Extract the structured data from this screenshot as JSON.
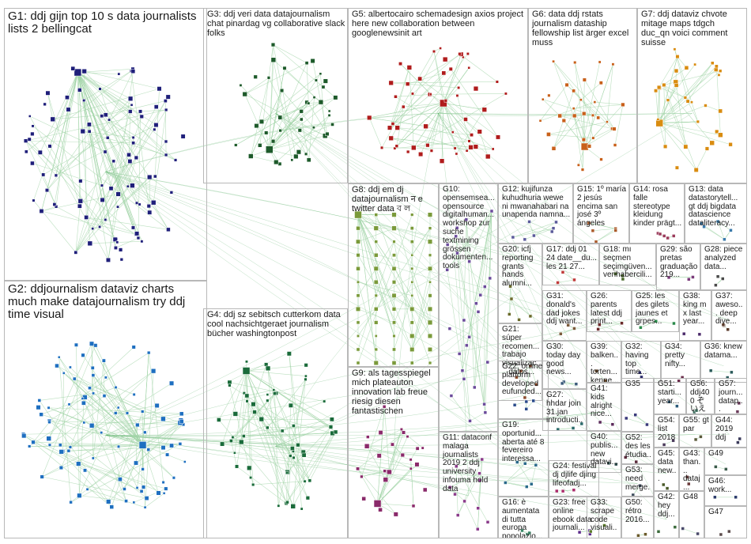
{
  "graph": {
    "colors": {
      "border": "#b8b8b8",
      "edge": "#3aa04a",
      "edge_faint": "#9fd3a5",
      "label": "#1a1a1a"
    },
    "groups": [
      {
        "id": "G1",
        "label": "G1: ddj gijn top 10 s data journalists lists 2 bellingcat",
        "color": "#1f1f7a"
      },
      {
        "id": "G2",
        "label": "G2: ddjournalism dataviz charts much make datajournalism try ddj time visual",
        "color": "#1e6fc0"
      },
      {
        "id": "G3",
        "label": "G3: ddj veri data datajournalism chat pinardag vg collaborative slack folks",
        "color": "#1d5a2a"
      },
      {
        "id": "G4",
        "label": "G4: ddj sz sebitsch cutterkom data cool nachsichtgeraet journalism bücher washingtonpost",
        "color": "#1a6b3a"
      },
      {
        "id": "G5",
        "label": "G5: albertocairo schemadesign axios project here new collaboration between googlenewsinit art",
        "color": "#b01c1c"
      },
      {
        "id": "G6",
        "label": "G6: data ddj rstats journalism dataship fellowship list ärger excel muss",
        "color": "#c8601a"
      },
      {
        "id": "G7",
        "label": "G7: ddj dataviz chvote mitage maps tdgch duc_qn voici comment suisse",
        "color": "#d98c10"
      },
      {
        "id": "G8",
        "label": "G8: ddj em dj datajournalism न e twitter data ব ল",
        "color": "#7a9a3a"
      },
      {
        "id": "G9",
        "label": "G9: als tagesspiegel mich plateauton innovation lab freue riesig diesen fantastischen",
        "color": "#8a2a6a"
      },
      {
        "id": "G10",
        "label": "G10: opensemsea... opensource digitalhuman... workshop zur suche textmining grössen dokumenten... tools",
        "color": "#6a4a9a"
      },
      {
        "id": "G11",
        "label": "G11: dataconf malaga journalists 2019 2 ddj university infouma hold data",
        "color": "#8a3a8a"
      },
      {
        "id": "G12",
        "label": "G12: kujifunza kuhudhuria wewe ni mwanahabari na unapenda namna...",
        "color": "#5a5a9a"
      },
      {
        "id": "G13",
        "label": "G13: data datastorytell... gt ddj bigdata datascience dataliteracy...",
        "color": "#3a7aaa"
      },
      {
        "id": "G14",
        "label": "G14: rosa falle stereotype kleidung kinder prägt...",
        "color": "#9a3a5a"
      },
      {
        "id": "G15",
        "label": "G15: 1º maría 2 jesús encima san josé 3º ángeles",
        "color": "#aa5a2a"
      },
      {
        "id": "G16",
        "label": "G16: è aumentata di tutta europa popolazio...",
        "color": "#3a8a6a"
      },
      {
        "id": "G17",
        "label": "G17: ddj 01 24 date__du... les 21 27...",
        "color": "#c03a3a"
      },
      {
        "id": "G18",
        "label": "G18: mı seçmen seçimgüven... verihabercili...",
        "color": "#4a6a2a"
      },
      {
        "id": "G19",
        "label": "G19: oportunid... aberta até 8 fevereiro interessa...",
        "color": "#2a6a8a"
      },
      {
        "id": "G20",
        "label": "G20: icfj reporting grants hands alumni...",
        "color": "#6a6a2a"
      },
      {
        "id": "G21",
        "label": "G21: súper recomen... trabajo visualizac... datos...",
        "color": "#8a4a2a"
      },
      {
        "id": "G22",
        "label": "G22: online platform developed eufunded...",
        "color": "#2a4a8a"
      },
      {
        "id": "G23",
        "label": "G23: free online ebook data journali...",
        "color": "#5a2a8a"
      },
      {
        "id": "G24",
        "label": "G24: festival dj djlife djing lifeofadj...",
        "color": "#aa2a6a"
      },
      {
        "id": "G25",
        "label": "G25: les des gilets jaunes et grpes...",
        "color": "#2a8a4a"
      },
      {
        "id": "G26",
        "label": "G26: parents latest ddj print...",
        "color": "#6a2a2a"
      },
      {
        "id": "G27",
        "label": "G27: hhdar join 31.jan introducti...",
        "color": "#2a6a6a"
      },
      {
        "id": "G28",
        "label": "G28: piece analyzed data...",
        "color": "#4a4a4a"
      },
      {
        "id": "G29",
        "label": "G29: são pretas graduação 219...",
        "color": "#7a3a7a"
      },
      {
        "id": "G30",
        "label": "G30: today day good news...",
        "color": "#3a5a7a"
      },
      {
        "id": "G31",
        "label": "G31: donald's dad jokes ddj want...",
        "color": "#7a5a3a"
      },
      {
        "id": "G32",
        "label": "G32: having top time...",
        "color": "#2a2a6a"
      },
      {
        "id": "G33",
        "label": "G33: scrape code visuali...",
        "color": "#5a7a2a"
      },
      {
        "id": "G34",
        "label": "G34: pretty nifty...",
        "color": "#6a2a4a"
      },
      {
        "id": "G35",
        "label": "G35",
        "color": "#3a3a7a"
      },
      {
        "id": "G36",
        "label": "G36: knew datama...",
        "color": "#2a5a5a"
      },
      {
        "id": "G37",
        "label": "G37: aweso... deep dive...",
        "color": "#5a3a2a"
      },
      {
        "id": "G38",
        "label": "G38: king m x last year...",
        "color": "#4a2a6a"
      },
      {
        "id": "G39",
        "label": "G39: balken... torten... kenne...",
        "color": "#6a4a2a"
      },
      {
        "id": "G40",
        "label": "G40: publis... new datavi...",
        "color": "#2a4a4a"
      },
      {
        "id": "G41",
        "label": "G41: kids alright nice...",
        "color": "#5a2a5a"
      },
      {
        "id": "G42",
        "label": "G42: hey ddj...",
        "color": "#3a6a3a"
      },
      {
        "id": "G43",
        "label": "G43: than... dataj...",
        "color": "#6a3a3a"
      },
      {
        "id": "G44",
        "label": "G44: 2019 ddj",
        "color": "#3a3a5a"
      },
      {
        "id": "G45",
        "label": "G45: data new...",
        "color": "#4a5a2a"
      },
      {
        "id": "G46",
        "label": "G46: work...",
        "color": "#2a3a6a"
      },
      {
        "id": "G47",
        "label": "G47",
        "color": "#5a4a4a"
      },
      {
        "id": "G48",
        "label": "G48",
        "color": "#4a4a6a"
      },
      {
        "id": "G49",
        "label": "G49",
        "color": "#3a5a4a"
      },
      {
        "id": "G50",
        "label": "G50: rétro 2016...",
        "color": "#6a5a2a"
      },
      {
        "id": "G51",
        "label": "G51: starti... year...",
        "color": "#2a5a7a"
      },
      {
        "id": "G52",
        "label": "G52: des les étudia...",
        "color": "#5a2a3a"
      },
      {
        "id": "G53",
        "label": "G53: need merge...",
        "color": "#3a4a5a"
      },
      {
        "id": "G54",
        "label": "G54: list 2018...",
        "color": "#4a3a5a"
      },
      {
        "id": "G55",
        "label": "G55: gt par",
        "color": "#5a5a3a"
      },
      {
        "id": "G56",
        "label": "G56: ddj400 ぞいえ",
        "color": "#3a6a5a"
      },
      {
        "id": "G57",
        "label": "G57: journ... datap...",
        "color": "#6a3a5a"
      }
    ]
  }
}
